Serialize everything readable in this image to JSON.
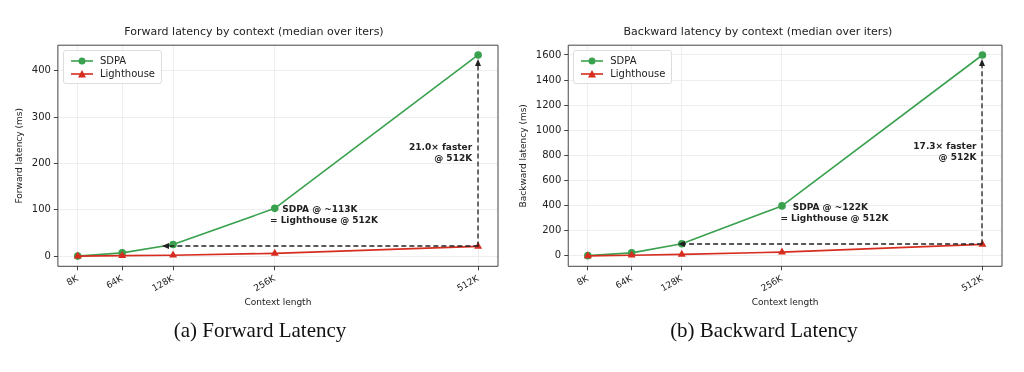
{
  "chart_data": [
    {
      "type": "line",
      "title": "Forward latency by context (median over iters)",
      "subtitle": "(a) Forward Latency",
      "xlabel": "Context length",
      "ylabel": "Forward latency (ms)",
      "x": [
        8,
        64,
        128,
        256,
        512
      ],
      "xlim": [
        -17,
        537
      ],
      "xticks": [
        {
          "value": 8,
          "label": "8K"
        },
        {
          "value": 64,
          "label": "64K"
        },
        {
          "value": 128,
          "label": "128K"
        },
        {
          "value": 256,
          "label": "256K"
        },
        {
          "value": 512,
          "label": "512K"
        }
      ],
      "ylim": [
        -22,
        455
      ],
      "yticks": [
        0,
        100,
        200,
        300,
        400
      ],
      "grid": true,
      "legend": "top left",
      "series": [
        {
          "name": "SDPA",
          "color": "#3aa14f",
          "marker": "circle",
          "values": [
            0,
            7,
            25,
            103,
            434
          ]
        },
        {
          "name": "Lighthouse",
          "color": "#d62d20",
          "marker": "triangle",
          "values": [
            0,
            1,
            2,
            6,
            21
          ]
        }
      ],
      "annotations": [
        "21.0× faster\n@ 512K",
        "SDPA @ ~113K\n= Lighthouse @ 512K"
      ]
    },
    {
      "type": "line",
      "title": "Backward latency by context (median over iters)",
      "subtitle": "(b) Backward Latency",
      "xlabel": "Context length",
      "ylabel": "Backward latency (ms)",
      "x": [
        8,
        64,
        128,
        256,
        512
      ],
      "xlim": [
        -17,
        537
      ],
      "xticks": [
        {
          "value": 8,
          "label": "8K"
        },
        {
          "value": 64,
          "label": "64K"
        },
        {
          "value": 128,
          "label": "128K"
        },
        {
          "value": 256,
          "label": "256K"
        },
        {
          "value": 512,
          "label": "512K"
        }
      ],
      "ylim": [
        -83,
        1678
      ],
      "yticks": [
        0,
        200,
        400,
        600,
        800,
        1000,
        1200,
        1400,
        1600
      ],
      "grid": true,
      "legend": "top left",
      "series": [
        {
          "name": "SDPA",
          "color": "#3aa14f",
          "marker": "circle",
          "values": [
            2,
            24,
            97,
            398,
            1600
          ]
        },
        {
          "name": "Lighthouse",
          "color": "#d62d20",
          "marker": "triangle",
          "values": [
            0,
            5,
            12,
            30,
            92
          ]
        }
      ],
      "annotations": [
        "17.3× faster\n@ 512K",
        "SDPA @ ~122K\n= Lighthouse @ 512K"
      ]
    }
  ]
}
